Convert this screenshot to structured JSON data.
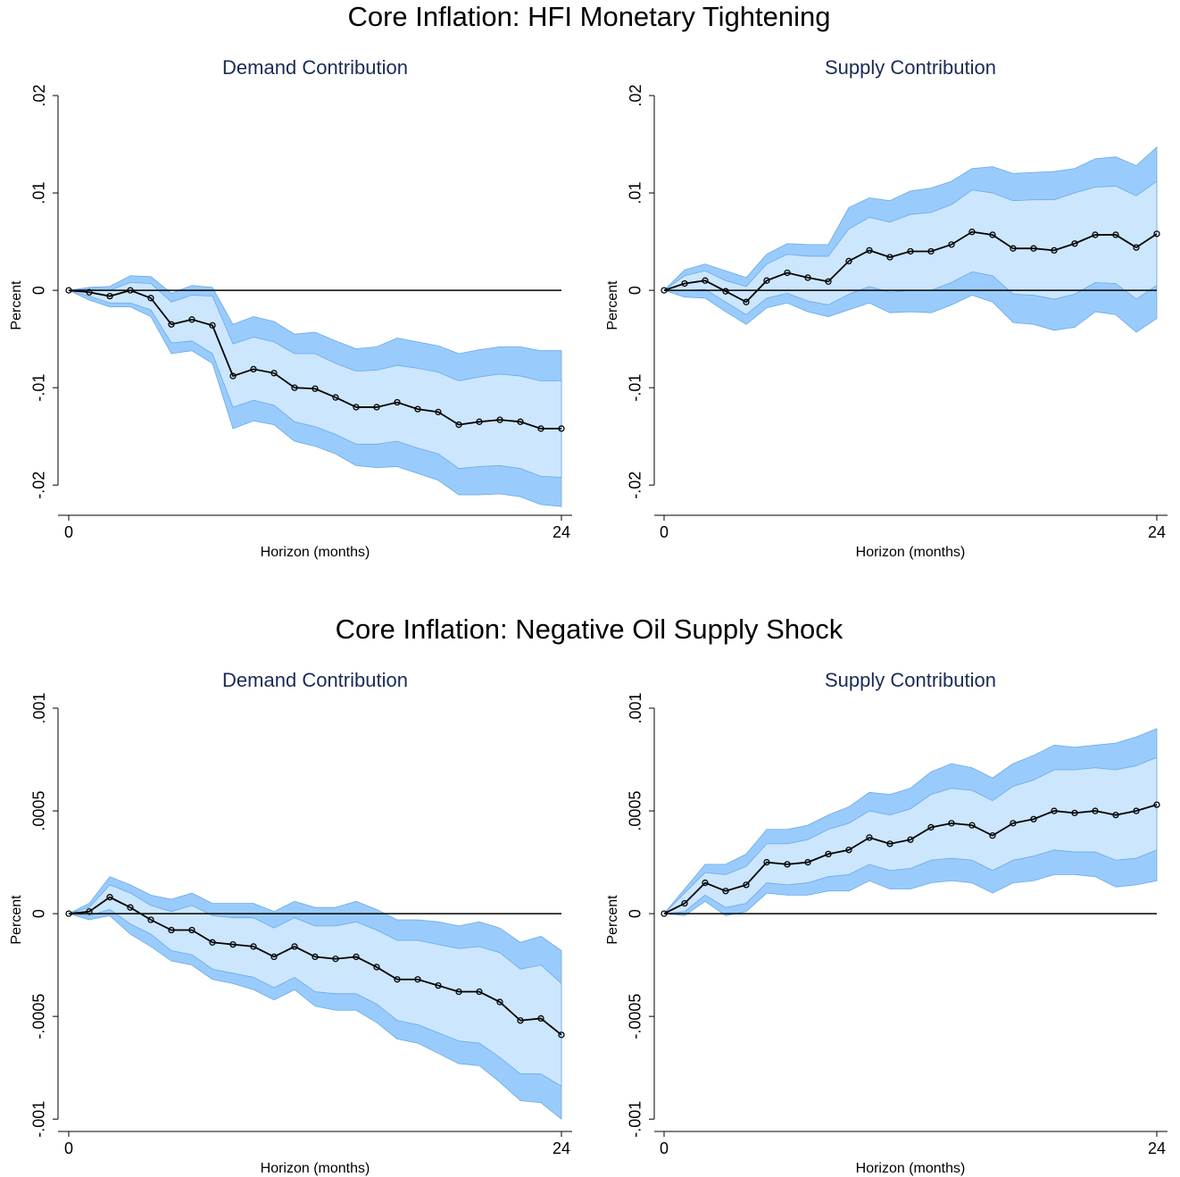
{
  "headings": [
    "Core Inflation: HFI Monetary Tightening",
    "Core Inflation: Negative Oil Supply Shock"
  ],
  "chart_data": [
    {
      "type": "line",
      "title": "Demand Contribution",
      "xlabel": "Horizon (months)",
      "ylabel": "Percent",
      "x": [
        0,
        1,
        2,
        3,
        4,
        5,
        6,
        7,
        8,
        9,
        10,
        11,
        12,
        13,
        14,
        15,
        16,
        17,
        18,
        19,
        20,
        21,
        22,
        23,
        24
      ],
      "xlim": [
        0,
        24
      ],
      "xticks": [
        0,
        24
      ],
      "ylim": [
        -0.0231,
        0.02
      ],
      "yticks": [
        {
          "value": -0.02,
          "label": "-.02"
        },
        {
          "value": -0.01,
          "label": "-.01"
        },
        0,
        {
          "value": 0.01,
          "label": ".01"
        },
        {
          "value": 0.02,
          "label": ".02"
        }
      ],
      "hline": 0,
      "bands": [
        {
          "color": "#99ccfc",
          "lower": [
            0,
            -0.001,
            -0.0017,
            -0.0017,
            -0.0027,
            -0.0065,
            -0.0062,
            -0.0075,
            -0.0142,
            -0.0134,
            -0.0138,
            -0.0155,
            -0.016,
            -0.0168,
            -0.018,
            -0.0182,
            -0.0181,
            -0.0188,
            -0.0195,
            -0.021,
            -0.021,
            -0.0209,
            -0.0212,
            -0.022,
            -0.0222
          ],
          "upper": [
            0,
            0.0003,
            0.0004,
            0.0015,
            0.0014,
            -0.0003,
            0.0005,
            0.0003,
            -0.0035,
            -0.0027,
            -0.0032,
            -0.0045,
            -0.0043,
            -0.0052,
            -0.006,
            -0.0058,
            -0.0049,
            -0.0053,
            -0.0057,
            -0.0065,
            -0.0061,
            -0.0058,
            -0.0058,
            -0.0062,
            -0.0062
          ]
        },
        {
          "color": "#cce6fd",
          "lower": [
            0,
            -0.0006,
            -0.0013,
            -0.0013,
            -0.002,
            -0.0054,
            -0.0052,
            -0.0065,
            -0.012,
            -0.0113,
            -0.0118,
            -0.0135,
            -0.014,
            -0.0148,
            -0.0158,
            -0.0158,
            -0.0155,
            -0.0162,
            -0.0168,
            -0.0183,
            -0.0181,
            -0.018,
            -0.0183,
            -0.0191,
            -0.0192
          ],
          "upper": [
            0,
            0.0001,
            0,
            0.0008,
            0.0007,
            -0.0012,
            -0.0005,
            -0.0006,
            -0.0055,
            -0.0048,
            -0.0053,
            -0.0065,
            -0.0065,
            -0.0075,
            -0.0083,
            -0.0082,
            -0.0077,
            -0.008,
            -0.0084,
            -0.0093,
            -0.0089,
            -0.0086,
            -0.0088,
            -0.0093,
            -0.0093
          ]
        }
      ],
      "series": [
        {
          "color": "#000000",
          "values": [
            0,
            -0.0002,
            -0.0006,
            0,
            -0.0008,
            -0.0035,
            -0.003,
            -0.0036,
            -0.0088,
            -0.0081,
            -0.0085,
            -0.01,
            -0.0101,
            -0.011,
            -0.012,
            -0.012,
            -0.0115,
            -0.0122,
            -0.0125,
            -0.0138,
            -0.0135,
            -0.0133,
            -0.0135,
            -0.0142,
            -0.0142
          ]
        }
      ]
    },
    {
      "type": "line",
      "title": "Supply Contribution",
      "xlabel": "Horizon (months)",
      "ylabel": "Percent",
      "x": [
        0,
        1,
        2,
        3,
        4,
        5,
        6,
        7,
        8,
        9,
        10,
        11,
        12,
        13,
        14,
        15,
        16,
        17,
        18,
        19,
        20,
        21,
        22,
        23,
        24
      ],
      "xlim": [
        0,
        24
      ],
      "xticks": [
        0,
        24
      ],
      "ylim": [
        -0.0231,
        0.02
      ],
      "yticks": [
        {
          "value": -0.02,
          "label": "-.02"
        },
        {
          "value": -0.01,
          "label": "-.01"
        },
        0,
        {
          "value": 0.01,
          "label": ".01"
        },
        {
          "value": 0.02,
          "label": ".02"
        }
      ],
      "hline": 0,
      "bands": [
        {
          "color": "#99ccfc",
          "lower": [
            0,
            -0.0007,
            -0.0008,
            -0.0022,
            -0.0035,
            -0.0018,
            -0.0013,
            -0.0022,
            -0.0027,
            -0.002,
            -0.0013,
            -0.0023,
            -0.0022,
            -0.0023,
            -0.0015,
            -0.0005,
            -0.0012,
            -0.0033,
            -0.0035,
            -0.0041,
            -0.0038,
            -0.0022,
            -0.0025,
            -0.0043,
            -0.0029
          ],
          "upper": [
            0,
            0.0021,
            0.0027,
            0.002,
            0.0013,
            0.0037,
            0.0048,
            0.0047,
            0.0047,
            0.0085,
            0.0095,
            0.0092,
            0.0102,
            0.0105,
            0.0112,
            0.0125,
            0.0127,
            0.012,
            0.0121,
            0.0122,
            0.0125,
            0.0135,
            0.0137,
            0.0128,
            0.0147
          ]
        },
        {
          "color": "#cce6fd",
          "lower": [
            0,
            0,
            0.0001,
            -0.0012,
            -0.0025,
            -0.0008,
            -0.0003,
            -0.0011,
            -0.0015,
            -0.0004,
            0.0004,
            -0.0002,
            0,
            0,
            0.0008,
            0.0019,
            0.0015,
            -0.0004,
            -0.0005,
            -0.0009,
            -0.0004,
            0.0008,
            0.0007,
            -0.0009,
            0.0005
          ],
          "upper": [
            0,
            0.0015,
            0.002,
            0.001,
            0.0004,
            0.0027,
            0.0037,
            0.0035,
            0.0035,
            0.0063,
            0.0075,
            0.007,
            0.0078,
            0.008,
            0.0088,
            0.0103,
            0.01,
            0.0092,
            0.0093,
            0.0093,
            0.01,
            0.0106,
            0.0107,
            0.0097,
            0.0112
          ]
        }
      ],
      "series": [
        {
          "color": "#000000",
          "values": [
            0,
            0.0007,
            0.001,
            -0.0001,
            -0.0012,
            0.001,
            0.0018,
            0.0013,
            0.0009,
            0.003,
            0.0041,
            0.0034,
            0.004,
            0.004,
            0.0047,
            0.006,
            0.0057,
            0.0043,
            0.0043,
            0.0041,
            0.0048,
            0.0057,
            0.0057,
            0.0044,
            0.0058
          ]
        }
      ]
    },
    {
      "type": "line",
      "title": "Demand Contribution",
      "xlabel": "Horizon (months)",
      "ylabel": "Percent",
      "x": [
        0,
        1,
        2,
        3,
        4,
        5,
        6,
        7,
        8,
        9,
        10,
        11,
        12,
        13,
        14,
        15,
        16,
        17,
        18,
        19,
        20,
        21,
        22,
        23,
        24
      ],
      "xlim": [
        0,
        24
      ],
      "xticks": [
        0,
        24
      ],
      "ylim": [
        -0.00106,
        0.001
      ],
      "yticks": [
        {
          "value": -0.001,
          "label": "-.001"
        },
        {
          "value": -0.0005,
          "label": "-.0005"
        },
        0,
        {
          "value": 0.0005,
          "label": ".0005"
        },
        {
          "value": 0.001,
          "label": ".001"
        }
      ],
      "hline": 0,
      "bands": [
        {
          "color": "#99ccfc",
          "lower": [
            0,
            -3e-05,
            -1e-05,
            -0.0001,
            -0.00016,
            -0.00023,
            -0.00025,
            -0.00032,
            -0.00034,
            -0.00037,
            -0.00042,
            -0.00037,
            -0.00045,
            -0.00047,
            -0.00047,
            -0.00053,
            -0.00061,
            -0.00063,
            -0.00068,
            -0.00073,
            -0.00074,
            -0.00082,
            -0.00091,
            -0.00092,
            -0.001
          ],
          "upper": [
            0,
            5e-05,
            0.00018,
            0.00014,
            9e-05,
            7e-05,
            0.0001,
            5e-05,
            5e-05,
            5e-05,
            1e-05,
            6e-05,
            3e-05,
            3e-05,
            6e-05,
            2e-05,
            -3e-05,
            -3e-05,
            -4e-05,
            -6e-05,
            -4e-05,
            -7e-05,
            -0.00014,
            -0.00011,
            -0.00018
          ]
        },
        {
          "color": "#cce6fd",
          "lower": [
            0,
            -1e-05,
            2e-05,
            -5e-05,
            -0.0001,
            -0.00018,
            -0.0002,
            -0.00027,
            -0.00029,
            -0.00031,
            -0.00036,
            -0.00031,
            -0.00038,
            -0.00039,
            -0.00039,
            -0.00044,
            -0.00052,
            -0.00054,
            -0.00058,
            -0.00062,
            -0.00063,
            -0.0007,
            -0.00078,
            -0.00078,
            -0.00084
          ],
          "upper": [
            0,
            3e-05,
            0.00014,
            0.0001,
            4e-05,
            1e-05,
            4e-05,
            -1e-05,
            -2e-05,
            -2e-05,
            -7e-05,
            -2e-05,
            -6e-05,
            -6e-05,
            -4e-05,
            -8e-05,
            -0.00013,
            -0.00013,
            -0.00015,
            -0.00017,
            -0.00016,
            -0.00019,
            -0.00027,
            -0.00025,
            -0.00034
          ]
        }
      ],
      "series": [
        {
          "color": "#000000",
          "values": [
            0,
            1e-05,
            8e-05,
            3e-05,
            -3e-05,
            -8e-05,
            -8e-05,
            -0.00014,
            -0.00015,
            -0.00016,
            -0.00021,
            -0.00016,
            -0.00021,
            -0.00022,
            -0.00021,
            -0.00026,
            -0.00032,
            -0.00032,
            -0.00035,
            -0.00038,
            -0.00038,
            -0.00043,
            -0.00052,
            -0.00051,
            -0.00059
          ]
        }
      ]
    },
    {
      "type": "line",
      "title": "Supply Contribution",
      "xlabel": "Horizon (months)",
      "ylabel": "Percent",
      "x": [
        0,
        1,
        2,
        3,
        4,
        5,
        6,
        7,
        8,
        9,
        10,
        11,
        12,
        13,
        14,
        15,
        16,
        17,
        18,
        19,
        20,
        21,
        22,
        23,
        24
      ],
      "xlim": [
        0,
        24
      ],
      "xticks": [
        0,
        24
      ],
      "ylim": [
        -0.00106,
        0.001
      ],
      "yticks": [
        {
          "value": -0.001,
          "label": "-.001"
        },
        {
          "value": -0.0005,
          "label": "-.0005"
        },
        0,
        {
          "value": 0.0005,
          "label": ".0005"
        },
        {
          "value": 0.001,
          "label": ".001"
        }
      ],
      "hline": 0,
      "bands": [
        {
          "color": "#99ccfc",
          "lower": [
            0,
            -1e-05,
            6e-05,
            -1e-05,
            1e-05,
            0.0001,
            9e-05,
            9e-05,
            0.00011,
            0.00011,
            0.00016,
            0.00012,
            0.00012,
            0.00015,
            0.00016,
            0.00015,
            0.0001,
            0.00015,
            0.00016,
            0.00019,
            0.00019,
            0.00018,
            0.00013,
            0.00014,
            0.00016
          ],
          "upper": [
            0,
            0.00012,
            0.00024,
            0.00024,
            0.00029,
            0.00041,
            0.00041,
            0.00043,
            0.00048,
            0.00052,
            0.00059,
            0.00058,
            0.00061,
            0.00069,
            0.00073,
            0.00071,
            0.00066,
            0.00073,
            0.00077,
            0.00082,
            0.00081,
            0.00082,
            0.00083,
            0.00086,
            0.0009
          ]
        },
        {
          "color": "#cce6fd",
          "lower": [
            0,
            1e-05,
            9e-05,
            3e-05,
            5e-05,
            0.00015,
            0.00014,
            0.00015,
            0.00018,
            0.00019,
            0.00024,
            0.00021,
            0.00022,
            0.00026,
            0.00027,
            0.00026,
            0.00021,
            0.00026,
            0.00028,
            0.00031,
            0.0003,
            0.0003,
            0.00026,
            0.00027,
            0.00031
          ],
          "upper": [
            0,
            0.0001,
            0.0002,
            0.00019,
            0.00023,
            0.00034,
            0.00034,
            0.00036,
            0.00041,
            0.00044,
            0.0005,
            0.00048,
            0.00051,
            0.00058,
            0.00061,
            0.0006,
            0.00055,
            0.00062,
            0.00065,
            0.0007,
            0.0007,
            0.00071,
            0.0007,
            0.00072,
            0.00076
          ]
        }
      ],
      "series": [
        {
          "color": "#000000",
          "values": [
            0,
            5e-05,
            0.00015,
            0.00011,
            0.00014,
            0.00025,
            0.00024,
            0.00025,
            0.00029,
            0.00031,
            0.00037,
            0.00034,
            0.00036,
            0.00042,
            0.00044,
            0.00043,
            0.00038,
            0.00044,
            0.00046,
            0.0005,
            0.00049,
            0.0005,
            0.00048,
            0.0005,
            0.00053
          ]
        }
      ]
    }
  ]
}
